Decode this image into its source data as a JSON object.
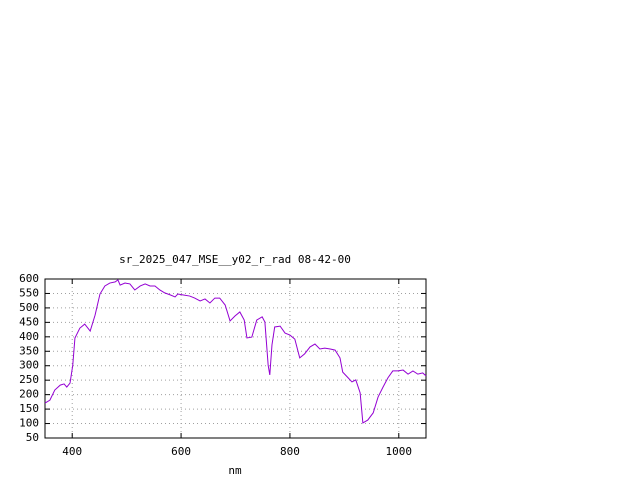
{
  "chart_data": {
    "type": "line",
    "title": "sr_2025_047_MSE__y02_r_rad 08-42-00",
    "x_label": "nm",
    "xlim": [
      350,
      1050
    ],
    "xticks": [
      400,
      600,
      800,
      1000
    ],
    "ylim": [
      50,
      600
    ],
    "yticks": [
      50,
      100,
      150,
      200,
      250,
      300,
      350,
      400,
      450,
      500,
      550,
      600
    ],
    "grid": true,
    "x": [
      350,
      359,
      368,
      378,
      385,
      390,
      396,
      401,
      405,
      414,
      423,
      433,
      442,
      451,
      460,
      469,
      479,
      484,
      488,
      497,
      506,
      515,
      525,
      534,
      543,
      552,
      561,
      570,
      580,
      589,
      594,
      603,
      616,
      625,
      635,
      644,
      653,
      662,
      671,
      681,
      690,
      699,
      708,
      716,
      721,
      730,
      739,
      749,
      754,
      760,
      763,
      767,
      772,
      782,
      791,
      800,
      809,
      818,
      827,
      837,
      846,
      855,
      864,
      874,
      883,
      892,
      897,
      907,
      914,
      921,
      929,
      934,
      943,
      953,
      962,
      971,
      980,
      989,
      998,
      1008,
      1017,
      1026,
      1035,
      1044,
      1050
    ],
    "series": [
      {
        "color": "#9400d3",
        "values": [
          171,
          181,
          216,
          233,
          237,
          226,
          240,
          302,
          396,
          430,
          444,
          420,
          475,
          548,
          576,
          586,
          590,
          597,
          579,
          586,
          583,
          562,
          576,
          583,
          576,
          576,
          562,
          552,
          545,
          538,
          548,
          545,
          541,
          534,
          524,
          531,
          517,
          534,
          534,
          510,
          455,
          472,
          486,
          458,
          396,
          399,
          458,
          469,
          451,
          302,
          268,
          372,
          434,
          437,
          413,
          406,
          392,
          327,
          341,
          365,
          375,
          358,
          361,
          358,
          354,
          327,
          278,
          258,
          244,
          251,
          206,
          102,
          112,
          137,
          192,
          226,
          258,
          282,
          282,
          285,
          271,
          282,
          271,
          275,
          265
        ]
      }
    ]
  }
}
